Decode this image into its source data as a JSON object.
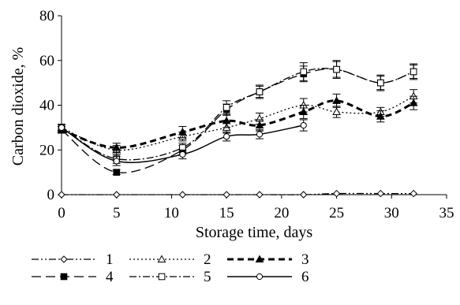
{
  "chart_data": {
    "type": "line",
    "title": "",
    "xlabel": "Storage time, days",
    "ylabel": "Carbon dioxide, %",
    "xlim": [
      0,
      35
    ],
    "ylim": [
      0,
      80
    ],
    "xticks": [
      0,
      5,
      10,
      15,
      20,
      25,
      30,
      35
    ],
    "yticks": [
      0,
      20,
      40,
      60,
      80
    ],
    "grid": false,
    "legend_position": "bottom",
    "series": [
      {
        "name": "1",
        "marker": "diamond",
        "dash": "dash-dot-dot",
        "points": [
          [
            0,
            0
          ],
          [
            5,
            0
          ],
          [
            11,
            0
          ],
          [
            15,
            0
          ],
          [
            18,
            0
          ],
          [
            22,
            0
          ],
          [
            25,
            0.5
          ],
          [
            29,
            0.5
          ],
          [
            32,
            0.5
          ]
        ],
        "errors": [
          0,
          0,
          0,
          0,
          0,
          0,
          0,
          0,
          0
        ]
      },
      {
        "name": "2",
        "marker": "triangle-open",
        "dash": "dotted",
        "points": [
          [
            0,
            30
          ],
          [
            5,
            20
          ],
          [
            11,
            26
          ],
          [
            15,
            30
          ],
          [
            18,
            34
          ],
          [
            22,
            40
          ],
          [
            25,
            37
          ],
          [
            29,
            37
          ],
          [
            32,
            44
          ]
        ],
        "errors": [
          1.5,
          2,
          2,
          2.5,
          2.5,
          3,
          2.5,
          2,
          3
        ]
      },
      {
        "name": "3",
        "marker": "triangle-filled",
        "dash": "bold-dash",
        "points": [
          [
            0,
            29
          ],
          [
            5,
            21
          ],
          [
            11,
            28
          ],
          [
            15,
            33
          ],
          [
            18,
            31
          ],
          [
            22,
            37
          ],
          [
            25,
            42
          ],
          [
            29,
            35
          ],
          [
            32,
            41
          ]
        ],
        "errors": [
          1.5,
          2,
          2.5,
          3,
          2.5,
          3,
          3,
          2.5,
          3
        ]
      },
      {
        "name": "4",
        "marker": "square-filled",
        "dash": "long-dash",
        "points": [
          [
            0,
            29
          ],
          [
            5,
            10
          ],
          [
            11,
            20
          ],
          [
            15,
            38
          ],
          [
            18,
            46
          ],
          [
            22,
            54
          ],
          [
            25,
            56
          ],
          [
            29,
            50
          ],
          [
            32,
            55
          ]
        ],
        "errors": [
          1.5,
          1,
          2,
          2.5,
          2.5,
          3.5,
          3.5,
          3,
          3
        ]
      },
      {
        "name": "5",
        "marker": "square-open",
        "dash": "dash-dot",
        "points": [
          [
            0,
            30
          ],
          [
            5,
            16
          ],
          [
            11,
            21
          ],
          [
            15,
            39
          ],
          [
            18,
            46
          ],
          [
            22,
            55
          ],
          [
            25,
            56
          ],
          [
            29,
            50
          ],
          [
            32,
            55
          ]
        ],
        "errors": [
          1.5,
          2,
          2,
          3,
          3,
          4,
          4,
          3.5,
          3.5
        ]
      },
      {
        "name": "6",
        "marker": "circle-open",
        "dash": "solid",
        "points": [
          [
            0,
            30
          ],
          [
            5,
            15
          ],
          [
            11,
            18
          ],
          [
            15,
            26
          ],
          [
            18,
            27
          ],
          [
            22,
            31
          ]
        ],
        "errors": [
          1.5,
          2,
          2,
          2,
          2,
          2.5
        ]
      }
    ]
  }
}
